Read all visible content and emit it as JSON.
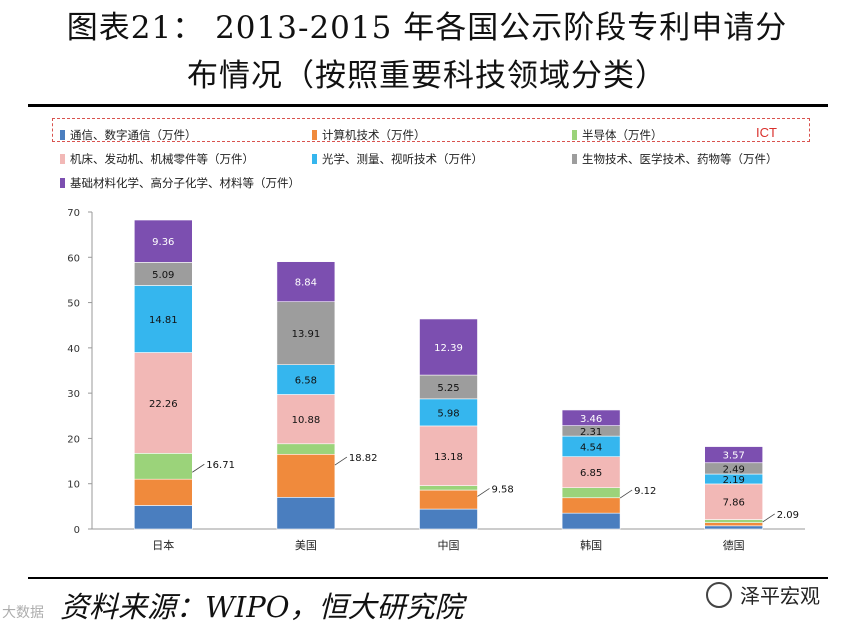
{
  "title": {
    "line1": "图表21： 2013-2015 年各国公示阶段专利申请分",
    "line2": "布情况（按照重要科技领域分类）"
  },
  "legend": {
    "items": [
      {
        "label": "通信、数字通信（万件）",
        "color": "#4a7ebf"
      },
      {
        "label": "计算机技术（万件）",
        "color": "#f08a3c"
      },
      {
        "label": "半导体（万件）",
        "color": "#9bd37a"
      },
      {
        "label": "机床、发动机、机械零件等（万件）",
        "color": "#f2b8b6"
      },
      {
        "label": "光学、测量、视听技术（万件）",
        "color": "#35b6ee"
      },
      {
        "label": "生物技术、医学技术、药物等（万件）",
        "color": "#9d9d9d"
      },
      {
        "label": "基础材料化学、高分子化学、材料等（万件）",
        "color": "#7c4fb0"
      }
    ],
    "ict_label": "ICT"
  },
  "chart_data": {
    "type": "bar",
    "stacked": true,
    "categories": [
      "日本",
      "美国",
      "中国",
      "韩国",
      "德国"
    ],
    "ylim": [
      0,
      70
    ],
    "yticks": [
      0,
      10,
      20,
      30,
      40,
      50,
      60,
      70
    ],
    "series": [
      {
        "name": "通信、数字通信（万件）",
        "values": [
          5.2,
          7.0,
          4.4,
          3.5,
          0.7
        ]
      },
      {
        "name": "计算机技术（万件）",
        "values": [
          5.8,
          9.5,
          4.2,
          3.4,
          0.7
        ]
      },
      {
        "name": "半导体（万件）",
        "values": [
          5.71,
          2.32,
          0.98,
          2.22,
          0.69
        ]
      },
      {
        "name": "机床、发动机、机械零件等（万件）",
        "values": [
          22.26,
          10.88,
          13.18,
          6.85,
          7.86
        ]
      },
      {
        "name": "光学、测量、视听技术（万件）",
        "values": [
          14.81,
          6.58,
          5.98,
          4.54,
          2.19
        ]
      },
      {
        "name": "生物技术、医学技术、药物等（万件）",
        "values": [
          5.09,
          13.91,
          5.25,
          2.31,
          2.49
        ]
      },
      {
        "name": "基础材料化学、高分子化学、材料等（万件）",
        "values": [
          9.36,
          8.84,
          12.39,
          3.46,
          3.57
        ]
      }
    ],
    "labeled_series": [
      3,
      4,
      5,
      6
    ],
    "ict_totals": [
      16.71,
      18.82,
      9.58,
      9.12,
      2.09
    ]
  },
  "footer": {
    "source": "资料来源：WIPO，恒大研究院",
    "brand": "泽平宏观",
    "watermark": "大数据"
  }
}
